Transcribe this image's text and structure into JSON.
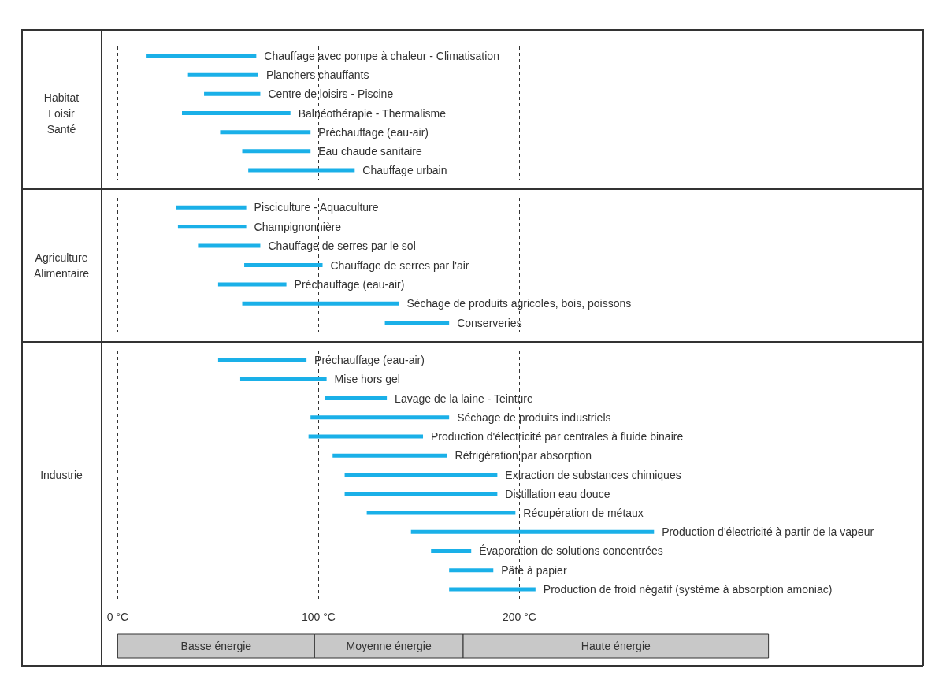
{
  "chart_data": [
    {
      "type": "bar",
      "orientation": "horizontal",
      "ylabel": "Habitat\nLoisir\nSanté",
      "color": "#1ab0e8",
      "grid": "x",
      "tick_labels": false,
      "categories": [
        "Chauffage avec pompe à chaleur - Climatisation",
        "Planchers chauffants",
        "Centre de loisirs - Piscine",
        "Balnéothérapie - Thermalisme",
        "Préchauffage (eau-air)",
        "Eau chaude sanitaire",
        "Chauffage urbain"
      ],
      "base": [
        14,
        35,
        43,
        32,
        51,
        62,
        65
      ],
      "values": [
        55,
        35,
        28,
        54,
        45,
        34,
        53
      ],
      "xlim": [
        -8,
        401
      ],
      "xticks": [
        0,
        100,
        200
      ]
    },
    {
      "type": "bar",
      "orientation": "horizontal",
      "ylabel": "Agriculture\nAlimentaire",
      "color": "#1ab0e8",
      "grid": "x",
      "tick_labels": false,
      "categories": [
        "Pisciculture - Aquaculture",
        "Champignonnière",
        "Chauffage de serres par le sol",
        "Chauffage de serres par l'air",
        "Préchauffage (eau-air)",
        "Séchage de produits agricoles, bois, poissons",
        "Conserveries"
      ],
      "base": [
        29,
        30,
        40,
        63,
        50,
        62,
        133
      ],
      "values": [
        35,
        34,
        31,
        39,
        34,
        78,
        32
      ],
      "xlim": [
        -8,
        401
      ],
      "xticks": [
        0,
        100,
        200
      ]
    },
    {
      "type": "bar",
      "orientation": "horizontal",
      "ylabel": "Industrie",
      "color": "#1ab0e8",
      "grid": "x",
      "tick_labels": "x",
      "categories": [
        "Préchauffage (eau-air)",
        "Mise hors gel",
        "Lavage de la laine - Teinture",
        "Séchage de produits industriels",
        "Production d'électricité par centrales à fluide binaire",
        "Réfrigération par absorption",
        "Extraction de substances chimiques",
        "Distillation eau douce",
        "Récupération de métaux",
        "Production d'électricité à partir de la vapeur",
        "Évaporation de solutions concentrées",
        "Pâte à papier",
        "Production de froid négatif (système à absorption amoniac)"
      ],
      "base": [
        50,
        61,
        103,
        96,
        95,
        107,
        113,
        113,
        124,
        146,
        156,
        165,
        165
      ],
      "values": [
        44,
        43,
        31,
        69,
        57,
        57,
        76,
        76,
        74,
        121,
        20,
        22,
        43
      ],
      "xlim": [
        -8,
        401
      ],
      "xticks": [
        {
          "value": 0,
          "label": "0 °C"
        },
        {
          "value": 100,
          "label": "100 °C"
        },
        {
          "value": 200,
          "label": "200 °C"
        }
      ]
    },
    {
      "type": "bar",
      "orientation": "horizontal",
      "stacked": true,
      "tick_labels": false,
      "categories": [
        null
      ],
      "series": [
        {
          "name": "Basse énergie",
          "color": "#c8c8c8",
          "values": [
            98
          ]
        },
        {
          "name": "Moyenne énergie",
          "color": "#c8c8c8",
          "values": [
            74
          ]
        },
        {
          "name": "Haute énergie",
          "color": "#c8c8c8",
          "values": [
            152
          ]
        }
      ],
      "xlim": [
        -8,
        401
      ]
    }
  ]
}
